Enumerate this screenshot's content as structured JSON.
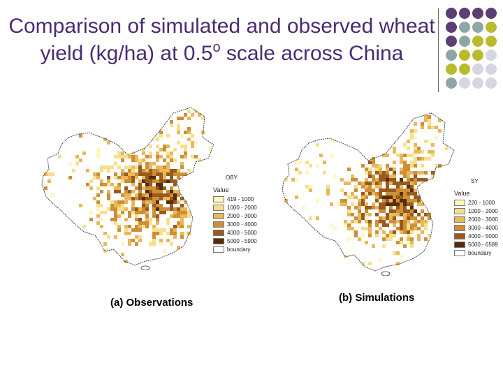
{
  "slide": {
    "title_main": "Comparison of simulated and observed wheat yield (kg/ha) at 0.5",
    "title_superscript": "o",
    "title_end": " scale across China"
  },
  "decoration": {
    "dot_colors": [
      "#5b3f72",
      "#8fa6a9",
      "#b9ba2e",
      "#d6d6e3"
    ],
    "dot_grid": [
      [
        0,
        0,
        0,
        0
      ],
      [
        0,
        1,
        1,
        2
      ],
      [
        0,
        1,
        2,
        2
      ],
      [
        1,
        2,
        2,
        3
      ],
      [
        2,
        2,
        3,
        3
      ],
      [
        1,
        3,
        3,
        3
      ]
    ]
  },
  "maps": [
    {
      "caption": "(a) Observations",
      "legend_code": "OBY",
      "legend_title": "Value",
      "legend_items": [
        {
          "label": "419 - 1000",
          "color": "#fff7b8"
        },
        {
          "label": "1000 - 2000",
          "color": "#f7df8c"
        },
        {
          "label": "2000 - 3000",
          "color": "#e8b85a"
        },
        {
          "label": "3000 - 4000",
          "color": "#cf8f35"
        },
        {
          "label": "4000 - 5000",
          "color": "#9a5a1e"
        },
        {
          "label": "5000 - 5900",
          "color": "#5a2a0a"
        },
        {
          "label": "boundary",
          "color": "#ffffff"
        }
      ]
    },
    {
      "caption": "(b) Simulations",
      "legend_code": "SY",
      "legend_title": "Value",
      "legend_items": [
        {
          "label": "220 - 1000",
          "color": "#fff7b8"
        },
        {
          "label": "1000 - 2000",
          "color": "#f7df8c"
        },
        {
          "label": "2000 - 3000",
          "color": "#e8b85a"
        },
        {
          "label": "3000 - 4000",
          "color": "#cf8f35"
        },
        {
          "label": "4000 - 5000",
          "color": "#9a5a1e"
        },
        {
          "label": "5000 - 6589",
          "color": "#5a2a0a"
        },
        {
          "label": "boundary",
          "color": "#ffffff"
        }
      ]
    }
  ]
}
